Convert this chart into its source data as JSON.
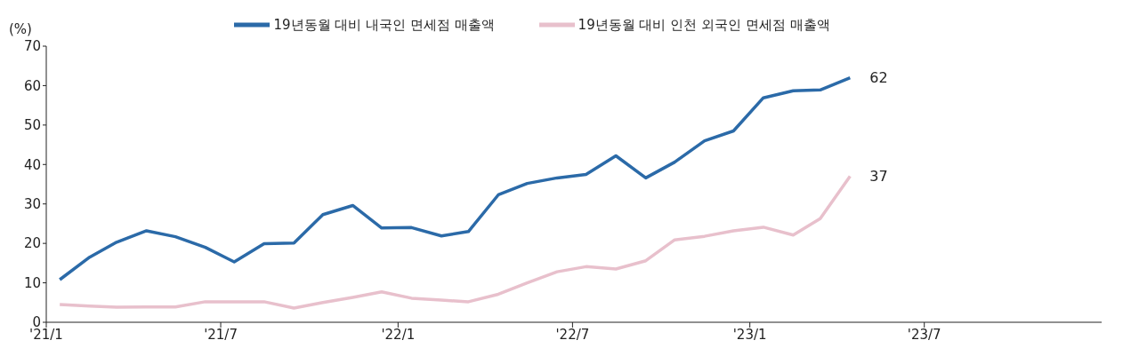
{
  "chart_data": {
    "type": "line",
    "ylabel": "(%)",
    "legend": "top",
    "grid": false,
    "marker": "none",
    "line_style": "solid",
    "x": [
      "2021-01-15",
      "2021-02-15",
      "2021-03-15",
      "2021-04-15",
      "2021-05-15",
      "2021-06-15",
      "2021-07-15",
      "2021-08-15",
      "2021-09-15",
      "2021-10-15",
      "2021-11-15",
      "2021-12-15",
      "2022-01-15",
      "2022-02-15",
      "2022-03-15",
      "2022-04-15",
      "2022-05-15",
      "2022-06-15",
      "2022-07-15",
      "2022-08-15",
      "2022-09-15",
      "2022-10-15",
      "2022-11-15",
      "2022-12-15",
      "2023-01-15",
      "2023-02-15",
      "2023-03-15",
      "2023-04-15"
    ],
    "xlim": [
      "2021-01",
      "2024-01"
    ],
    "xticks": [
      {
        "value": "2021-01",
        "label": "'21/1"
      },
      {
        "value": "2021-07",
        "label": "'21/7"
      },
      {
        "value": "2022-01",
        "label": "'22/1"
      },
      {
        "value": "2022-07",
        "label": "'22/7"
      },
      {
        "value": "2023-01",
        "label": "'23/1"
      },
      {
        "value": "2023-07",
        "label": "'23/7"
      }
    ],
    "ylim": [
      0,
      70
    ],
    "yticks": [
      0,
      10,
      20,
      30,
      40,
      50,
      60,
      70
    ],
    "series": [
      {
        "name": "19년동월 대비 내국인 면세점 매출액",
        "color": "#2b6aa8",
        "values": [
          10.8,
          16.5,
          20.3,
          23.2,
          21.7,
          19.0,
          15.3,
          19.9,
          20.1,
          27.3,
          29.6,
          23.9,
          24.0,
          21.9,
          23.0,
          32.3,
          35.2,
          36.6,
          37.5,
          42.2,
          36.6,
          40.6,
          46.0,
          48.5,
          56.9,
          58.7,
          58.9,
          62
        ],
        "value_labels": [
          null,
          null,
          null,
          null,
          null,
          null,
          null,
          null,
          null,
          null,
          null,
          null,
          null,
          null,
          null,
          null,
          null,
          null,
          null,
          null,
          null,
          null,
          null,
          null,
          null,
          null,
          null,
          "62"
        ]
      },
      {
        "name": "19년동월 대비 인천 외국인 면세점 매출액",
        "color": "#e8c0cc",
        "values": [
          4.5,
          4.1,
          3.8,
          3.9,
          3.9,
          5.2,
          5.2,
          5.2,
          3.6,
          5.0,
          6.3,
          7.7,
          6.1,
          5.6,
          5.2,
          7.1,
          10.0,
          12.8,
          14.1,
          13.5,
          15.6,
          20.9,
          21.8,
          23.2,
          24.1,
          22.1,
          26.3,
          37
        ],
        "value_labels": [
          null,
          null,
          null,
          null,
          null,
          null,
          null,
          null,
          null,
          null,
          null,
          null,
          null,
          null,
          null,
          null,
          null,
          null,
          null,
          null,
          null,
          null,
          null,
          null,
          null,
          null,
          null,
          "37"
        ]
      }
    ]
  }
}
